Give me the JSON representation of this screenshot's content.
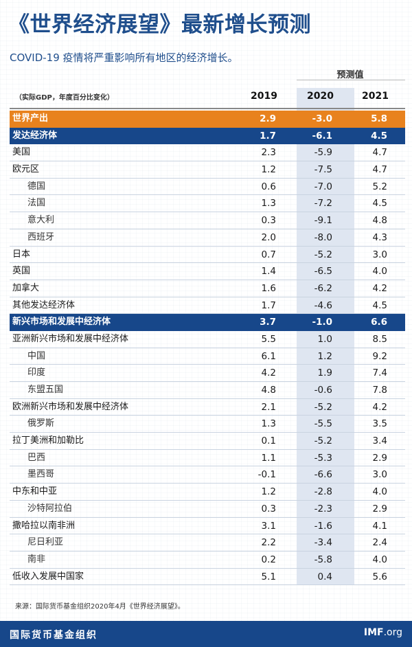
{
  "title": "《世界经济展望》最新增长预测",
  "subtitle": "COVID-19 疫情将严重影响所有地区的经济增长。",
  "projection_label": "预测值",
  "units_label": "（实际GDP，年度百分比变化）",
  "years": [
    "2019",
    "2020",
    "2021"
  ],
  "rows": [
    {
      "name": "世界产出",
      "v": [
        "2.9",
        "-3.0",
        "5.8"
      ]
    },
    {
      "name": "发达经济体",
      "v": [
        "1.7",
        "-6.1",
        "4.5"
      ]
    },
    {
      "name": "美国",
      "v": [
        "2.3",
        "-5.9",
        "4.7"
      ]
    },
    {
      "name": "欧元区",
      "v": [
        "1.2",
        "-7.5",
        "4.7"
      ]
    },
    {
      "name": "德国",
      "v": [
        "0.6",
        "-7.0",
        "5.2"
      ]
    },
    {
      "name": "法国",
      "v": [
        "1.3",
        "-7.2",
        "4.5"
      ]
    },
    {
      "name": "意大利",
      "v": [
        "0.3",
        "-9.1",
        "4.8"
      ]
    },
    {
      "name": "西班牙",
      "v": [
        "2.0",
        "-8.0",
        "4.3"
      ]
    },
    {
      "name": "日本",
      "v": [
        "0.7",
        "-5.2",
        "3.0"
      ]
    },
    {
      "name": "英国",
      "v": [
        "1.4",
        "-6.5",
        "4.0"
      ]
    },
    {
      "name": "加拿大",
      "v": [
        "1.6",
        "-6.2",
        "4.2"
      ]
    },
    {
      "name": "其他发达经济体",
      "v": [
        "1.7",
        "-4.6",
        "4.5"
      ]
    },
    {
      "name": "新兴市场和发展中经济体",
      "v": [
        "3.7",
        "-1.0",
        "6.6"
      ]
    },
    {
      "name": "亚洲新兴市场和发展中经济体",
      "v": [
        "5.5",
        "1.0",
        "8.5"
      ]
    },
    {
      "name": "中国",
      "v": [
        "6.1",
        "1.2",
        "9.2"
      ]
    },
    {
      "name": "印度",
      "v": [
        "4.2",
        "1.9",
        "7.4"
      ]
    },
    {
      "name": "东盟五国",
      "v": [
        "4.8",
        "-0.6",
        "7.8"
      ]
    },
    {
      "name": "欧洲新兴市场和发展中经济体",
      "v": [
        "2.1",
        "-5.2",
        "4.2"
      ]
    },
    {
      "name": "俄罗斯",
      "v": [
        "1.3",
        "-5.5",
        "3.5"
      ]
    },
    {
      "name": "拉丁美洲和加勒比",
      "v": [
        "0.1",
        "-5.2",
        "3.4"
      ]
    },
    {
      "name": "巴西",
      "v": [
        "1.1",
        "-5.3",
        "2.9"
      ]
    },
    {
      "name": "墨西哥",
      "v": [
        "-0.1",
        "-6.6",
        "3.0"
      ]
    },
    {
      "name": "中东和中亚",
      "v": [
        "1.2",
        "-2.8",
        "4.0"
      ]
    },
    {
      "name": "沙特阿拉伯",
      "v": [
        "0.3",
        "-2.3",
        "2.9"
      ]
    },
    {
      "name": "撒哈拉以南非洲",
      "v": [
        "3.1",
        "-1.6",
        "4.1"
      ]
    },
    {
      "name": "尼日利亚",
      "v": [
        "2.2",
        "-3.4",
        "2.4"
      ]
    },
    {
      "name": "南非",
      "v": [
        "0.2",
        "-5.8",
        "4.0"
      ]
    },
    {
      "name": "低收入发展中国家",
      "v": [
        "5.1",
        "0.4",
        "5.6"
      ]
    }
  ],
  "source": "来源：国际货币基金组织2020年4月《世界经济展望》。",
  "footer": {
    "org": "国际货币基金组织",
    "site_bold": "IMF",
    "site_rest": ".org"
  }
}
